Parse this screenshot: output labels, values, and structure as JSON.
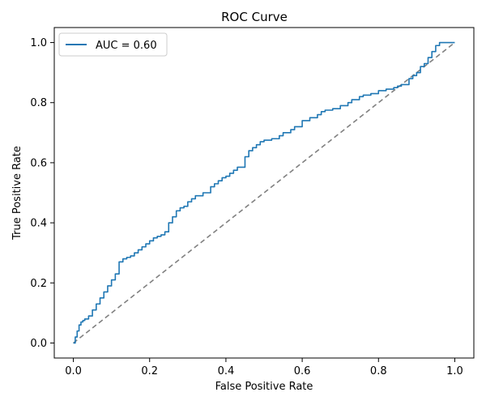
{
  "chart_data": {
    "type": "line",
    "title": "ROC Curve",
    "xlabel": "False Positive Rate",
    "ylabel": "True Positive Rate",
    "xlim": [
      -0.05,
      1.05
    ],
    "ylim": [
      -0.05,
      1.05
    ],
    "xticks": [
      "0.0",
      "0.2",
      "0.4",
      "0.6",
      "0.8",
      "1.0"
    ],
    "yticks": [
      "0.0",
      "0.2",
      "0.4",
      "0.6",
      "0.8",
      "1.0"
    ],
    "grid": false,
    "legend_position": "upper-left",
    "series": [
      {
        "name": "AUC = 0.60",
        "color": "#1f77b4",
        "style": "solid",
        "x": [
          0.0,
          0.005,
          0.01,
          0.015,
          0.02,
          0.025,
          0.03,
          0.04,
          0.05,
          0.05,
          0.06,
          0.06,
          0.07,
          0.07,
          0.08,
          0.08,
          0.09,
          0.09,
          0.1,
          0.1,
          0.11,
          0.11,
          0.12,
          0.12,
          0.13,
          0.14,
          0.15,
          0.16,
          0.17,
          0.18,
          0.19,
          0.2,
          0.21,
          0.22,
          0.23,
          0.24,
          0.25,
          0.25,
          0.26,
          0.27,
          0.28,
          0.29,
          0.3,
          0.31,
          0.32,
          0.34,
          0.36,
          0.37,
          0.38,
          0.39,
          0.4,
          0.41,
          0.42,
          0.43,
          0.45,
          0.46,
          0.47,
          0.48,
          0.49,
          0.5,
          0.52,
          0.54,
          0.55,
          0.57,
          0.58,
          0.6,
          0.62,
          0.64,
          0.65,
          0.66,
          0.68,
          0.7,
          0.72,
          0.73,
          0.75,
          0.76,
          0.78,
          0.8,
          0.82,
          0.84,
          0.85,
          0.86,
          0.88,
          0.89,
          0.9,
          0.91,
          0.92,
          0.93,
          0.94,
          0.95,
          0.96,
          0.98,
          1.0
        ],
        "y": [
          0.0,
          0.02,
          0.04,
          0.06,
          0.07,
          0.075,
          0.08,
          0.09,
          0.1,
          0.11,
          0.11,
          0.13,
          0.14,
          0.15,
          0.16,
          0.17,
          0.18,
          0.19,
          0.2,
          0.21,
          0.22,
          0.23,
          0.26,
          0.27,
          0.28,
          0.285,
          0.29,
          0.3,
          0.31,
          0.32,
          0.33,
          0.34,
          0.35,
          0.355,
          0.36,
          0.37,
          0.39,
          0.4,
          0.42,
          0.44,
          0.45,
          0.455,
          0.47,
          0.48,
          0.49,
          0.5,
          0.52,
          0.53,
          0.54,
          0.55,
          0.555,
          0.565,
          0.575,
          0.585,
          0.62,
          0.64,
          0.65,
          0.66,
          0.67,
          0.675,
          0.68,
          0.69,
          0.7,
          0.71,
          0.72,
          0.74,
          0.75,
          0.76,
          0.77,
          0.775,
          0.78,
          0.79,
          0.8,
          0.81,
          0.82,
          0.825,
          0.83,
          0.84,
          0.845,
          0.85,
          0.855,
          0.86,
          0.88,
          0.89,
          0.9,
          0.92,
          0.93,
          0.95,
          0.97,
          0.99,
          1.0,
          1.0,
          1.0
        ]
      },
      {
        "name": "",
        "color": "#808080",
        "style": "dashed",
        "x": [
          0.0,
          1.0
        ],
        "y": [
          0.0,
          1.0
        ]
      }
    ]
  }
}
